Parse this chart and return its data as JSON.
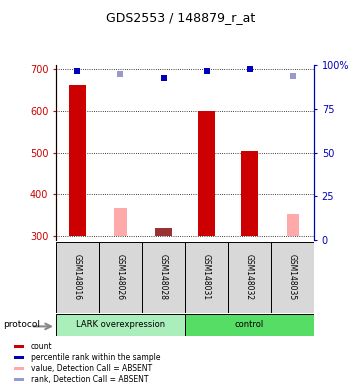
{
  "title": "GDS2553 / 148879_r_at",
  "samples": [
    "GSM148016",
    "GSM148026",
    "GSM148028",
    "GSM148031",
    "GSM148032",
    "GSM148035"
  ],
  "groups": [
    "LARK overexpression",
    "control"
  ],
  "ylim_left": [
    290,
    710
  ],
  "ylim_right": [
    0,
    100
  ],
  "yticks_left": [
    300,
    400,
    500,
    600,
    700
  ],
  "yticks_right": [
    0,
    25,
    50,
    75,
    100
  ],
  "red_bars": [
    {
      "x": 0,
      "value": 662,
      "absent": false
    },
    {
      "x": 2,
      "value": 320,
      "absent": true
    },
    {
      "x": 3,
      "value": 600,
      "absent": false
    },
    {
      "x": 4,
      "value": 503,
      "absent": false
    }
  ],
  "pink_bars": [
    {
      "x": 1,
      "value": 368
    },
    {
      "x": 2,
      "value": 320
    },
    {
      "x": 5,
      "value": 352
    }
  ],
  "blue_squares": [
    {
      "x": 0,
      "percentile": 97,
      "absent": false
    },
    {
      "x": 1,
      "percentile": 95,
      "absent": true
    },
    {
      "x": 2,
      "percentile": 93,
      "absent": false
    },
    {
      "x": 3,
      "percentile": 97,
      "absent": false
    },
    {
      "x": 4,
      "percentile": 98,
      "absent": false
    },
    {
      "x": 5,
      "percentile": 94,
      "absent": true
    }
  ],
  "bar_width": 0.4,
  "pink_bar_width": 0.28,
  "base_value": 300,
  "colors": {
    "red_bar": "#cc0000",
    "red_bar_absent": "#993333",
    "pink_bar": "#ffaaaa",
    "blue_square_solid": "#0000bb",
    "blue_square_faded": "#9999cc",
    "group1_bg": "#aaeebb",
    "group2_bg": "#55dd66",
    "sample_box_bg": "#d8d8d8",
    "sample_box_border": "#888888",
    "left_axis_color": "#cc0000",
    "right_axis_color": "#0000bb"
  },
  "legend_items": [
    {
      "label": "count",
      "color": "#cc0000"
    },
    {
      "label": "percentile rank within the sample",
      "color": "#0000bb"
    },
    {
      "label": "value, Detection Call = ABSENT",
      "color": "#ffaaaa"
    },
    {
      "label": "rank, Detection Call = ABSENT",
      "color": "#9999cc"
    }
  ]
}
